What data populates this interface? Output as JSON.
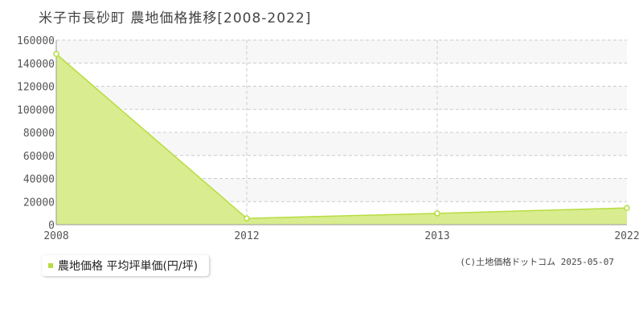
{
  "title": "米子市長砂町 農地価格推移[2008-2022]",
  "chart_data": {
    "type": "area",
    "title": "米子市長砂町 農地価格推移[2008-2022]",
    "xlabel": "",
    "ylabel": "",
    "categories": [
      "2008",
      "2012",
      "2013",
      "2022"
    ],
    "series": [
      {
        "name": "農地価格 平均坪単価(円/坪)",
        "values": [
          148000,
          5500,
          9800,
          14500
        ]
      }
    ],
    "ylim": [
      0,
      160000
    ],
    "yticks": [
      "0",
      "20000",
      "40000",
      "60000",
      "80000",
      "100000",
      "120000",
      "140000",
      "160000"
    ],
    "grid": true,
    "legend": "bottom-left",
    "colors": {
      "fill": "#d9ec8f",
      "line": "#b7dd3f",
      "grid": "#cccccc"
    }
  },
  "legend": {
    "label": "農地価格 平均坪単価(円/坪)"
  },
  "copyright": "(C)土地価格ドットコム 2025-05-07"
}
